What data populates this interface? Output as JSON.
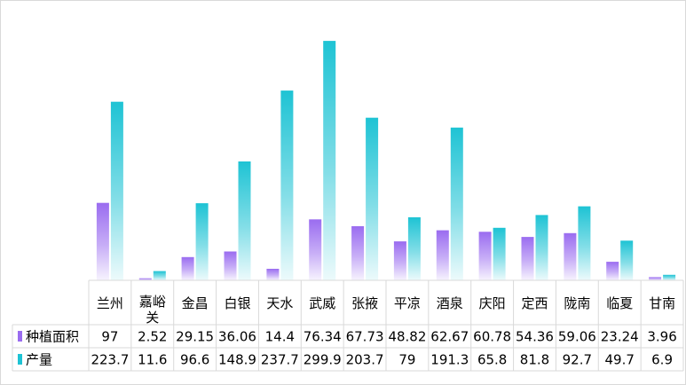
{
  "chart_data": {
    "type": "bar",
    "categories": [
      "兰州",
      "嘉峪关",
      "金昌",
      "白银",
      "天水",
      "武威",
      "张掖",
      "平凉",
      "酒泉",
      "庆阳",
      "定西",
      "陇南",
      "临夏",
      "甘南"
    ],
    "series": [
      {
        "name": "种植面积",
        "values": [
          97,
          2.52,
          29.15,
          36.06,
          14.4,
          76.34,
          67.73,
          48.82,
          62.67,
          60.78,
          54.36,
          59.06,
          23.24,
          3.96
        ],
        "color": "#9a6cf0"
      },
      {
        "name": "产量",
        "values": [
          223.7,
          11.6,
          96.6,
          148.9,
          237.7,
          299.9,
          203.7,
          79,
          191.3,
          65.8,
          81.8,
          92.7,
          49.7,
          6.9
        ],
        "color": "#1ec3d4"
      }
    ],
    "value_labels": [
      [
        "97",
        "2.52",
        "29.15",
        "36.06",
        "14.4",
        "76.34",
        "67.73",
        "48.82",
        "62.67",
        "60.78",
        "54.36",
        "59.06",
        "23.24",
        "3.96"
      ],
      [
        "223.7",
        "11.6",
        "96.6",
        "148.9",
        "237.7",
        "299.9",
        "203.7",
        "79",
        "191.3",
        "65.8",
        "81.8",
        "92.7",
        "49.7",
        "6.9"
      ]
    ],
    "ylim": [
      0,
      320
    ],
    "grid": false,
    "legend": "data-table-left"
  }
}
